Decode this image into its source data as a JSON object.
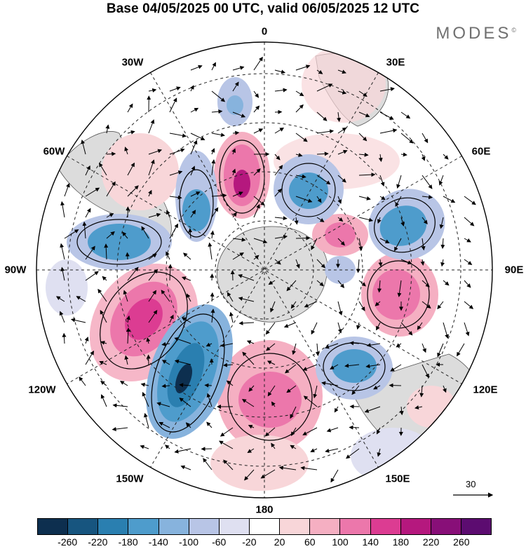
{
  "header": {
    "title": "Base 04/05/2025 00 UTC, valid 06/05/2025 12 UTC",
    "brand": "MODES",
    "brand_mark": "©"
  },
  "map": {
    "projection": "south-polar-stereographic",
    "longitude_labels": {
      "top": "0",
      "top_left": "30W",
      "top_right": "30E",
      "upper_left": "60W",
      "upper_right": "60E",
      "left": "90W",
      "right": "90E",
      "lower_left": "120W",
      "lower_right": "120E",
      "bottom_left": "150W",
      "bottom_right": "150E",
      "bottom": "180"
    },
    "vector_reference": "30",
    "colors": {
      "land": "#dcdcdc",
      "coast": "#555555"
    }
  },
  "colorbar": {
    "ticks": [
      "-260",
      "-220",
      "-180",
      "-140",
      "-100",
      "-60",
      "-20",
      "20",
      "60",
      "100",
      "140",
      "180",
      "220",
      "260"
    ],
    "colors": [
      "#0d2f4f",
      "#17557f",
      "#2a7fb0",
      "#4e9ccc",
      "#87b3dd",
      "#b8c5e6",
      "#dfe0f1",
      "#ffffff",
      "#f8d6d9",
      "#f5afc2",
      "#ec77ab",
      "#dc3c92",
      "#b5187e",
      "#880f78",
      "#5c0c70"
    ]
  }
}
